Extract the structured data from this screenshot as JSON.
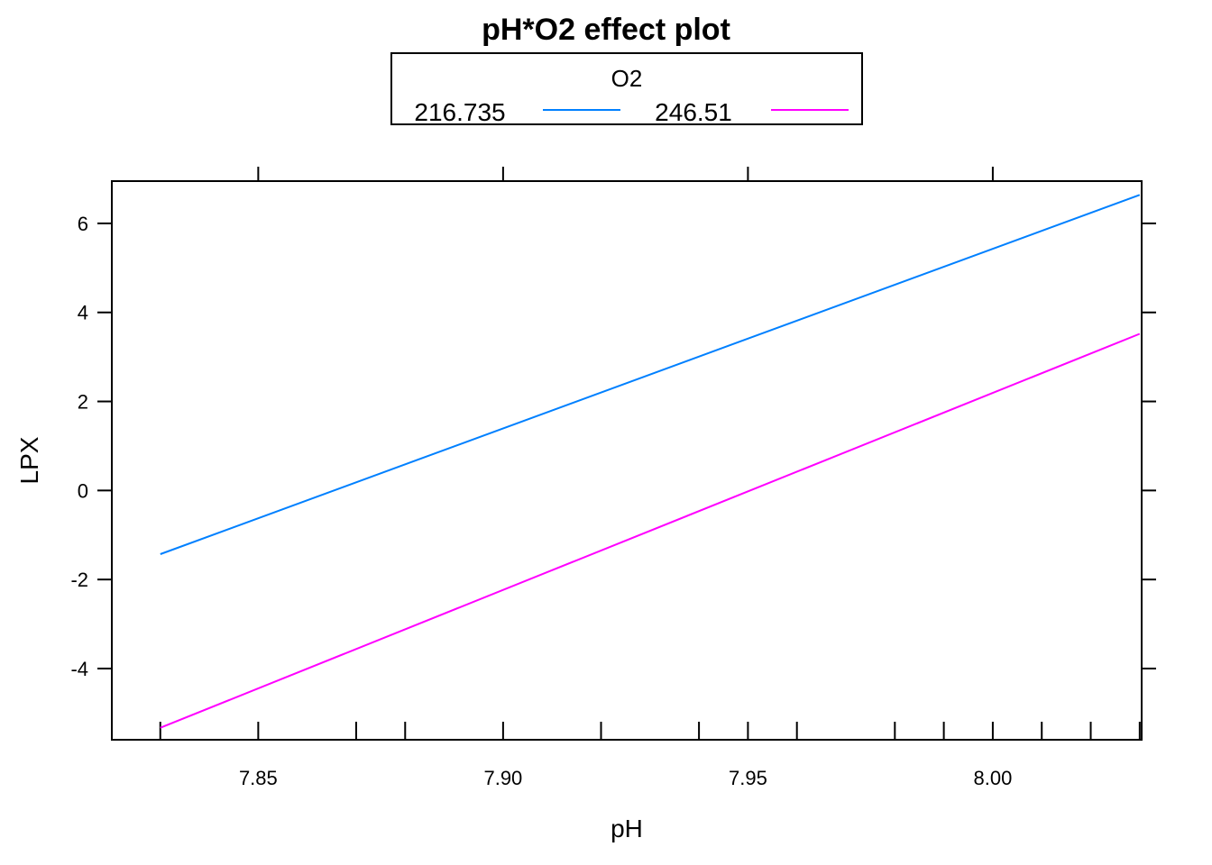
{
  "chart_data": {
    "type": "line",
    "title": "pH*O2 effect plot",
    "xlabel": "pH",
    "ylabel": "LPX",
    "xlim": [
      7.8201,
      8.0304
    ],
    "ylim": [
      -5.6,
      6.95
    ],
    "x_ticks": [
      7.85,
      7.9,
      7.95,
      8.0
    ],
    "x_tick_labels": [
      "7.85",
      "7.90",
      "7.95",
      "8.00"
    ],
    "y_ticks": [
      -4,
      -2,
      0,
      2,
      4,
      6
    ],
    "y_tick_labels": [
      "-4",
      "-2",
      "0",
      "2",
      "4",
      "6"
    ],
    "x_rug": [
      7.83,
      7.85,
      7.87,
      7.88,
      7.9,
      7.92,
      7.94,
      7.95,
      7.96,
      7.98,
      7.99,
      8.0,
      8.01,
      8.02,
      8.03
    ],
    "grid": false,
    "legend": {
      "title": "O2",
      "position": "top",
      "entries": [
        {
          "label": "216.735",
          "color": "#0080ff"
        },
        {
          "label": "246.51",
          "color": "#ff00ff"
        }
      ]
    },
    "series": [
      {
        "name": "216.735",
        "color": "#0080ff",
        "x": [
          7.83,
          8.03
        ],
        "y": [
          -1.43,
          6.64
        ]
      },
      {
        "name": "246.51",
        "color": "#ff00ff",
        "x": [
          7.83,
          8.03
        ],
        "y": [
          -5.33,
          3.52
        ]
      }
    ]
  }
}
